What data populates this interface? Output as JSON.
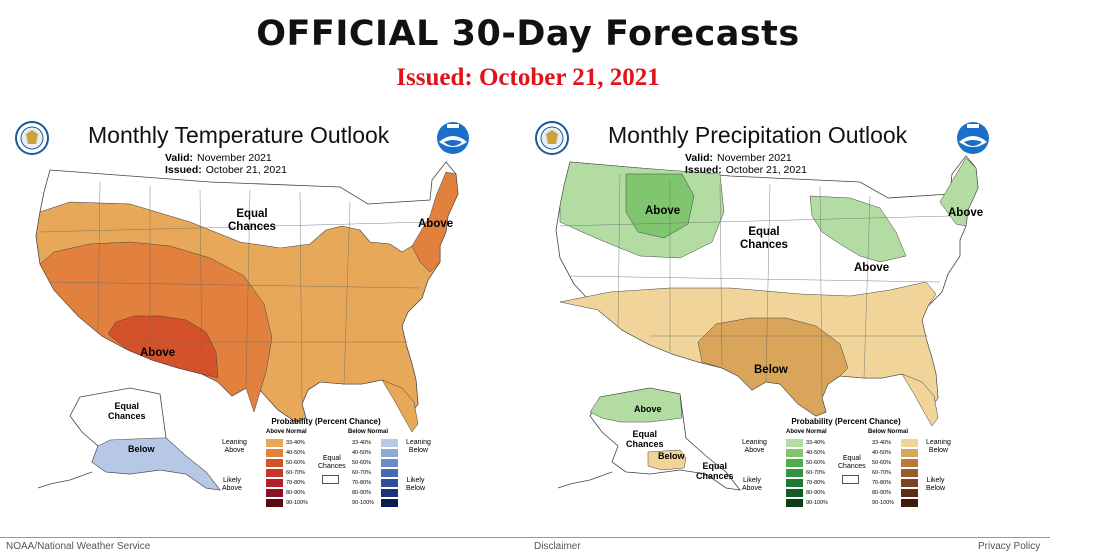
{
  "header": {
    "title": "OFFICIAL 30-Day Forecasts",
    "issued": "Issued: October 21, 2021"
  },
  "colors": {
    "issued_red": "#e0131b",
    "above_33_40": "#e8a85a",
    "above_40_50": "#e2803e",
    "above_50_60": "#d4522a",
    "above_60_70": "#c73629",
    "above_70_80": "#b11e2c",
    "above_80_90": "#8c1026",
    "above_90_100": "#5a0a12",
    "below_temp_33_40": "#b7c8e6",
    "below_temp_40_50": "#8ea9d6",
    "below_temp_50_60": "#6a8bc8",
    "below_temp_60_70": "#4a69b5",
    "below_temp_70_80": "#2f4e9a",
    "below_temp_80_90": "#1b3378",
    "below_temp_90_100": "#0b1a50",
    "above_precip_33_40": "#b3dca3",
    "above_precip_40_50": "#80c66e",
    "above_precip_50_60": "#4fae49",
    "above_precip_60_70": "#2f9540",
    "above_precip_70_80": "#1e7a33",
    "above_precip_80_90": "#145d27",
    "above_precip_90_100": "#0a3e17",
    "below_precip_33_40": "#f0d49a",
    "below_precip_40_50": "#d9a55a",
    "below_precip_50_60": "#b97a3a",
    "below_precip_60_70": "#9a5c2b",
    "below_precip_70_80": "#7b4322",
    "below_precip_80_90": "#5e2f17",
    "below_precip_90_100": "#3d1c0c"
  },
  "temperature": {
    "title": "Monthly Temperature Outlook",
    "valid_label": "Valid:",
    "valid_value": "November 2021",
    "issued_label": "Issued:",
    "issued_value": "October 21, 2021",
    "labels": {
      "equal_chances_north": "Equal\nChances",
      "above_northeast": "Above",
      "above_southwest": "Above",
      "equal_chances_alaska": "Equal\nChances",
      "below_alaska": "Below"
    },
    "icons": [
      "doc-seal-icon",
      "noaa-logo-icon"
    ]
  },
  "precipitation": {
    "title": "Monthly Precipitation Outlook",
    "valid_label": "Valid:",
    "valid_value": "November 2021",
    "issued_label": "Issued:",
    "issued_value": "October 21, 2021",
    "labels": {
      "above_northwest": "Above",
      "equal_chances_center": "Equal\nChances",
      "above_great_lakes": "Above",
      "above_new_england": "Above",
      "below_south": "Below",
      "above_alaska": "Above",
      "equal_chances_alaska": "Equal\nChances",
      "below_alaska_south": "Below",
      "equal_chances_aleutians": "Equal\nChances"
    },
    "icons": [
      "doc-seal-icon",
      "noaa-logo-icon"
    ]
  },
  "legend": {
    "title": "Probability (Percent Chance)",
    "above_header": "Above Normal",
    "below_header": "Below Normal",
    "ranges": [
      "33-40%",
      "40-50%",
      "50-60%",
      "60-70%",
      "70-80%",
      "80-90%",
      "90-100%"
    ],
    "leaning_above": "Leaning\nAbove",
    "likely_above": "Likely\nAbove",
    "leaning_below": "Leaning\nBelow",
    "likely_below": "Likely\nBelow",
    "equal_chances": "Equal\nChances"
  },
  "footer": {
    "left": "NOAA/National Weather Service",
    "center": "Disclaimer",
    "right": "Privacy Policy"
  }
}
